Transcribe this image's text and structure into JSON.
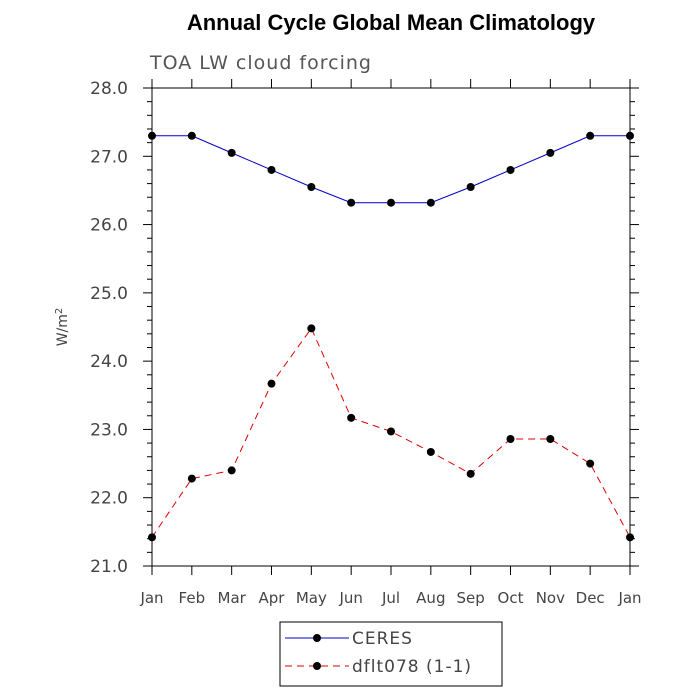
{
  "chart_data": {
    "type": "line",
    "title": "Annual Cycle Global Mean Climatology",
    "subtitle": "TOA LW cloud forcing",
    "xlabel": "",
    "ylabel": "W/m",
    "ylabel_superscript": "2",
    "categories": [
      "Jan",
      "Feb",
      "Mar",
      "Apr",
      "May",
      "Jun",
      "Jul",
      "Aug",
      "Sep",
      "Oct",
      "Nov",
      "Dec",
      "Jan"
    ],
    "ylim": [
      21.0,
      28.0
    ],
    "yticks": [
      21.0,
      22.0,
      23.0,
      24.0,
      25.0,
      26.0,
      27.0,
      28.0
    ],
    "ytick_labels": [
      "21.0",
      "22.0",
      "23.0",
      "24.0",
      "25.0",
      "26.0",
      "27.0",
      "28.0"
    ],
    "grid": false,
    "legend_position": "bottom-center",
    "series": [
      {
        "name": "CERES",
        "color": "#0000cc",
        "line_style": "solid",
        "marker": "circle",
        "values": [
          27.3,
          27.3,
          27.05,
          26.8,
          26.55,
          26.32,
          26.32,
          26.32,
          26.55,
          26.8,
          27.05,
          27.3,
          27.3
        ]
      },
      {
        "name": "dflt078 (1-1)",
        "color": "#dd0000",
        "line_style": "dashed",
        "marker": "circle",
        "values": [
          21.42,
          22.28,
          22.4,
          23.67,
          24.48,
          23.17,
          22.97,
          22.67,
          22.35,
          22.86,
          22.86,
          22.5,
          21.42
        ]
      }
    ]
  }
}
